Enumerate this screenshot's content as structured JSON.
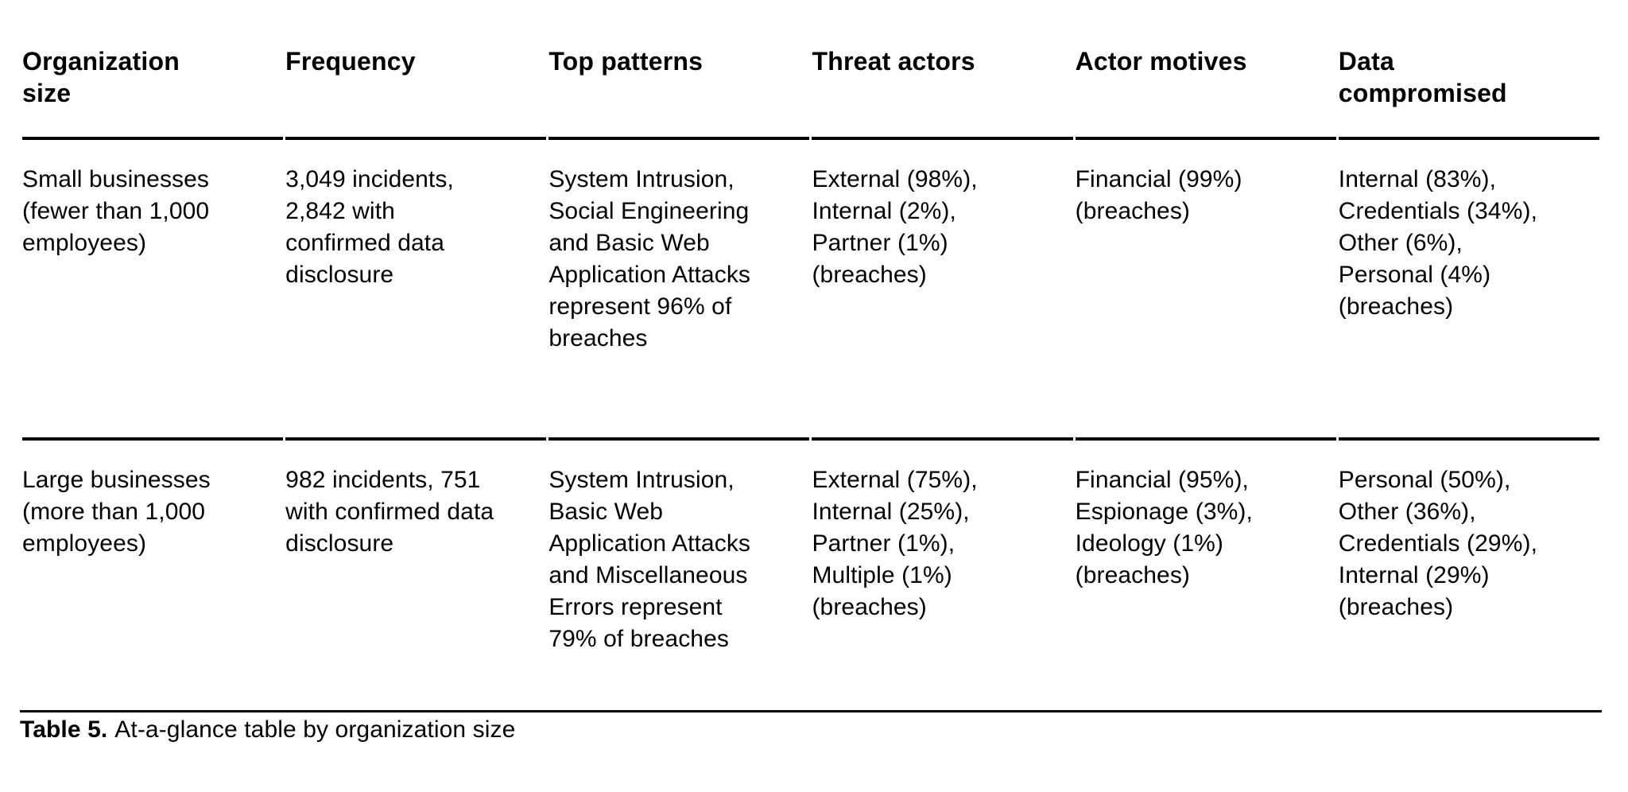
{
  "colors": {
    "background": "#ffffff",
    "text": "#000000",
    "rule": "#000000"
  },
  "table": {
    "columns": [
      {
        "label": "Organization\nsize"
      },
      {
        "label": "Frequency"
      },
      {
        "label": "Top patterns"
      },
      {
        "label": "Threat actors"
      },
      {
        "label": "Actor motives"
      },
      {
        "label": "Data\ncompromised"
      }
    ],
    "rows": [
      {
        "org_size": "Small businesses\n(fewer than 1,000\nemployees)",
        "frequency": "3,049 incidents,\n2,842 with\nconfirmed data\ndisclosure",
        "top_patterns": "System Intrusion,\nSocial Engineering\nand Basic Web\nApplication Attacks\nrepresent 96% of\nbreaches",
        "threat_actors": "External (98%),\nInternal (2%),\nPartner (1%)\n(breaches)",
        "actor_motives": "Financial (99%)\n(breaches)",
        "data_compromised": "Internal (83%),\nCredentials (34%),\nOther (6%),\nPersonal (4%)\n(breaches)"
      },
      {
        "org_size": "Large businesses\n(more than 1,000\nemployees)",
        "frequency": "982 incidents, 751\nwith confirmed data\ndisclosure",
        "top_patterns": "System Intrusion,\nBasic Web\nApplication Attacks\nand Miscellaneous\nErrors represent\n79% of breaches",
        "threat_actors": "External (75%),\nInternal (25%),\nPartner (1%),\nMultiple (1%)\n(breaches)",
        "actor_motives": "Financial (95%),\nEspionage (3%),\nIdeology (1%)\n(breaches)",
        "data_compromised": "Personal (50%),\nOther (36%),\nCredentials (29%),\nInternal (29%)\n(breaches)"
      }
    ]
  },
  "caption": {
    "label": "Table 5.",
    "text": "At-a-glance table by organization size"
  }
}
